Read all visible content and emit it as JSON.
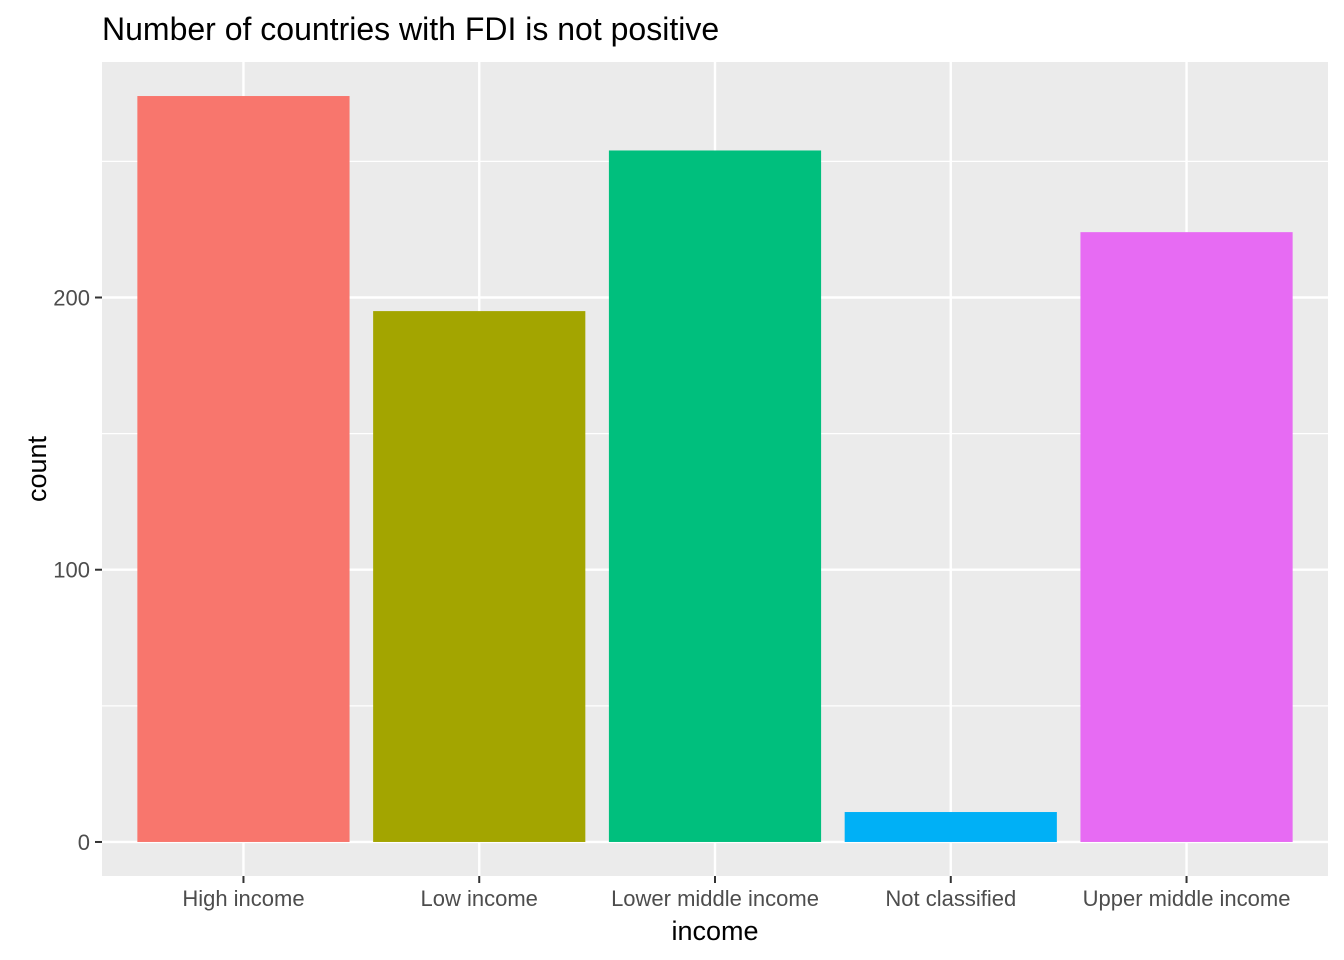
{
  "chart_data": {
    "type": "bar",
    "title": "Number of countries with FDI is not positive",
    "xlabel": "income",
    "ylabel": "count",
    "categories": [
      "High income",
      "Low income",
      "Lower middle income",
      "Not classified",
      "Upper middle income"
    ],
    "values": [
      274,
      195,
      254,
      11,
      224
    ],
    "colors": [
      "#F8766D",
      "#A3A500",
      "#00BF7D",
      "#00B0F6",
      "#E76BF3"
    ],
    "ylim": [
      -12.5,
      286.5
    ],
    "yticks": [
      0,
      100,
      200
    ],
    "grid": true,
    "panel_background": "#EBEBEB",
    "legend": "none"
  }
}
